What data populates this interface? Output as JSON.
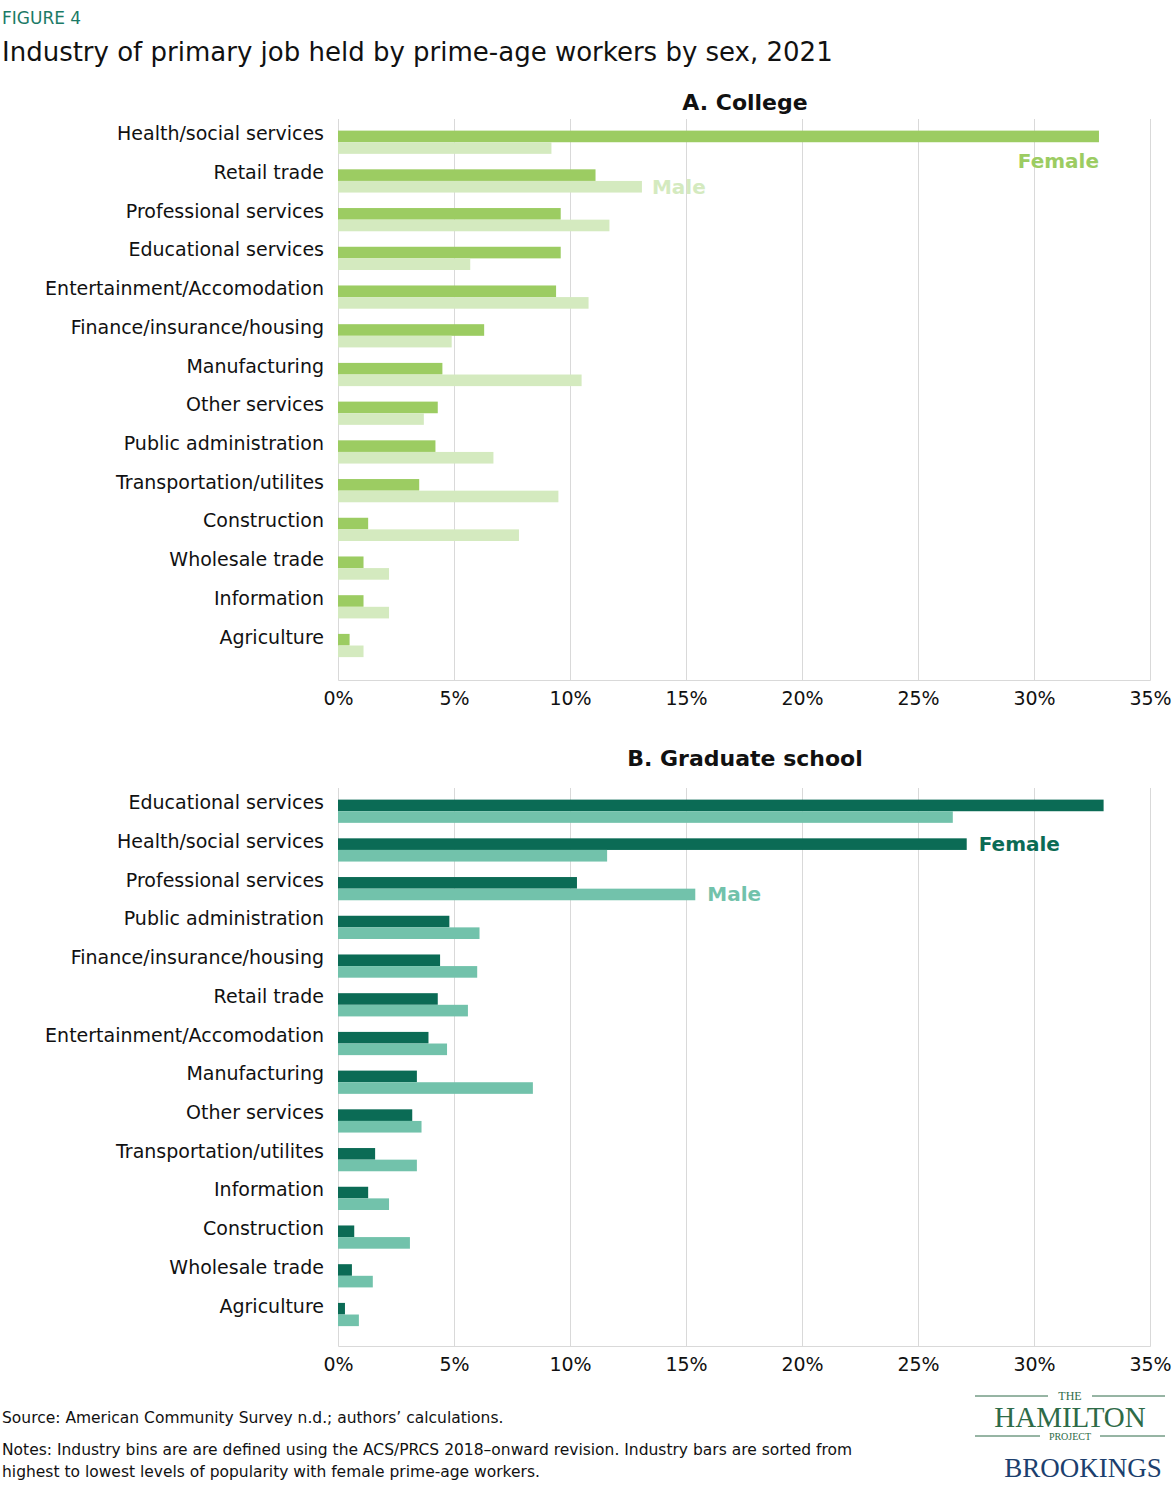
{
  "figure_label": "FIGURE 4",
  "title": "Industry of primary job held by prime-age workers by sex, 2021",
  "chart_data": [
    {
      "type": "bar",
      "orientation": "horizontal",
      "title": "A. College",
      "categories": [
        "Health/social services",
        "Retail trade",
        "Professional services",
        "Educational services",
        "Entertainment/Accomodation",
        "Finance/insurance/housing",
        "Manufacturing",
        "Other services",
        "Public administration",
        "Transportation/utilites",
        "Construction",
        "Wholesale trade",
        "Information",
        "Agriculture"
      ],
      "series": [
        {
          "name": "Female",
          "color": "#9ccc62",
          "values": [
            32.8,
            11.1,
            9.6,
            9.6,
            9.4,
            6.3,
            4.5,
            4.3,
            4.2,
            3.5,
            1.3,
            1.1,
            1.1,
            0.5
          ]
        },
        {
          "name": "Male",
          "color": "#d4eabf",
          "values": [
            9.2,
            13.1,
            11.7,
            5.7,
            10.8,
            4.9,
            10.5,
            3.7,
            6.7,
            9.5,
            7.8,
            2.2,
            2.2,
            1.1
          ]
        }
      ],
      "xlim": [
        0,
        35
      ],
      "xticks": [
        {
          "value": 0,
          "label": "0%"
        },
        {
          "value": 5,
          "label": "5%"
        },
        {
          "value": 10,
          "label": "10%"
        },
        {
          "value": 15,
          "label": "15%"
        },
        {
          "value": 20,
          "label": "20%"
        },
        {
          "value": 25,
          "label": "25%"
        },
        {
          "value": 30,
          "label": "30%"
        },
        {
          "value": 35,
          "label": "35%"
        }
      ],
      "grid": true
    },
    {
      "type": "bar",
      "orientation": "horizontal",
      "title": "B. Graduate school",
      "categories": [
        "Educational services",
        "Health/social services",
        "Professional services",
        "Public administration",
        "Finance/insurance/housing",
        "Retail trade",
        "Entertainment/Accomodation",
        "Manufacturing",
        "Other services",
        "Transportation/utilites",
        "Information",
        "Construction",
        "Wholesale trade",
        "Agriculture"
      ],
      "series": [
        {
          "name": "Female",
          "color": "#0b6b55",
          "values": [
            33.0,
            27.1,
            10.3,
            4.8,
            4.4,
            4.3,
            3.9,
            3.4,
            3.2,
            1.6,
            1.3,
            0.7,
            0.6,
            0.3
          ]
        },
        {
          "name": "Male",
          "color": "#72c2ab",
          "values": [
            26.5,
            11.6,
            15.4,
            6.1,
            6.0,
            5.6,
            4.7,
            8.4,
            3.6,
            3.4,
            2.2,
            3.1,
            1.5,
            0.9
          ]
        }
      ],
      "xlim": [
        0,
        35
      ],
      "xticks": [
        {
          "value": 0,
          "label": "0%"
        },
        {
          "value": 5,
          "label": "5%"
        },
        {
          "value": 10,
          "label": "10%"
        },
        {
          "value": 15,
          "label": "15%"
        },
        {
          "value": 20,
          "label": "20%"
        },
        {
          "value": 25,
          "label": "25%"
        },
        {
          "value": 30,
          "label": "30%"
        },
        {
          "value": 35,
          "label": "35%"
        }
      ],
      "grid": true
    }
  ],
  "source": "Source: American Community Survey n.d.; authors’ calculations.",
  "notes": [
    "Notes: Industry bins are are defined using the ACS/PRCS 2018–onward revision. Industry bars are sorted from",
    "highest to lowest levels of popularity with female prime-age workers."
  ],
  "logo": {
    "top": "THE",
    "name": "HAMILTON",
    "bottom": "PROJECT",
    "org": "BROOKINGS"
  }
}
